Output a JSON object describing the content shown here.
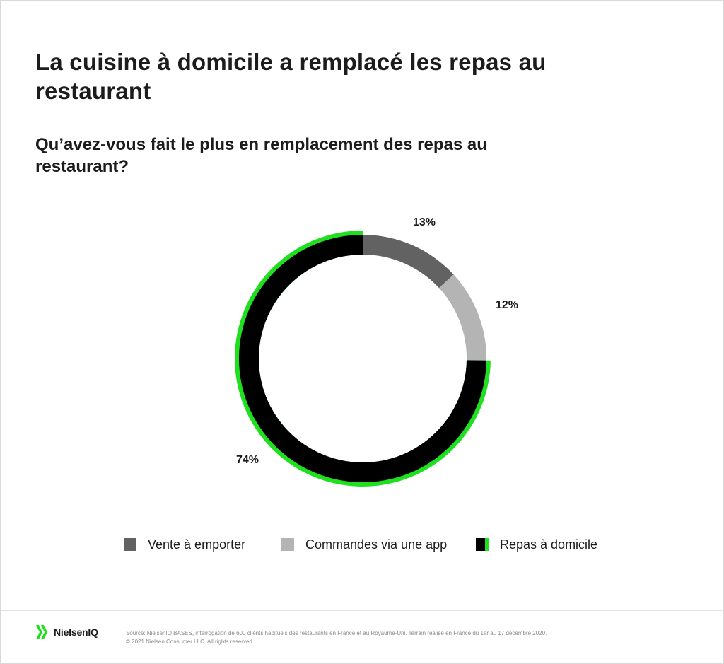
{
  "header": {
    "title": "La cuisine à domicile a remplacé les repas au restaurant",
    "subtitle": "Qu’avez-vous fait le plus en remplacement des repas au restaurant?"
  },
  "chart_data": {
    "type": "pie",
    "variant": "donut",
    "title": "La cuisine à domicile a remplacé les repas au restaurant",
    "subtitle": "Qu’avez-vous fait le plus en remplacement des repas au restaurant?",
    "categories": [
      "Vente à emporter",
      "Commandes via une app",
      "Repas à domicile"
    ],
    "values": [
      13,
      12,
      74
    ],
    "labels": [
      "13%",
      "12%",
      "74%"
    ],
    "colors": [
      "#626262",
      "#b4b4b4",
      "#000000"
    ],
    "highlight_color": "#1fe01f",
    "highlight_index": 2,
    "legend_position": "bottom"
  },
  "legend": {
    "items": [
      {
        "label": "Vente à emporter"
      },
      {
        "label": "Commandes via une app"
      },
      {
        "label": "Repas à domicile"
      }
    ]
  },
  "footer": {
    "logo_text": "NielsenIQ",
    "source": "Source: NielsenIQ BASES, interrogation de 600 clients habituels des restaurants en France et au Royaume-Uni. Terrain réalisé en France du 1er au 17 décembre 2020.",
    "copyright": "© 2021 Nielsen Consumer LLC. All rights reserved."
  }
}
